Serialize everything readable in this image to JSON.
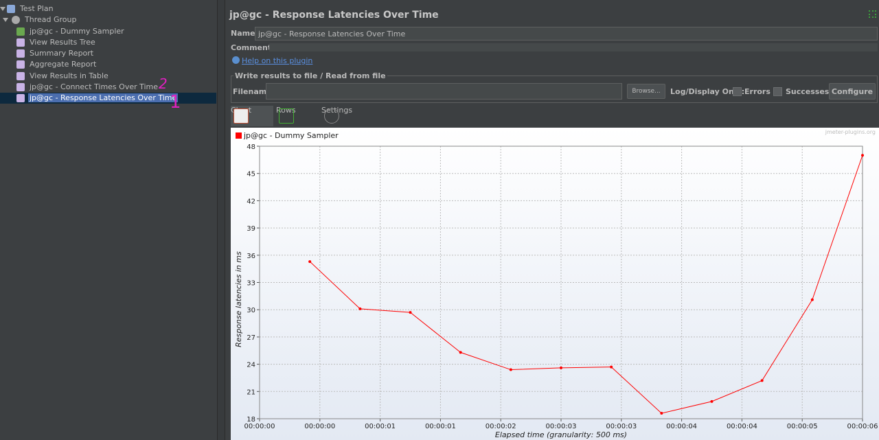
{
  "tree": {
    "items": [
      "Test Plan",
      "Thread Group",
      "jp@gc - Dummy Sampler",
      "View Results Tree",
      "Summary Report",
      "Aggregate Report",
      "View Results in Table",
      "jp@gc - Connect Times Over Time",
      "jp@gc - Response Latencies Over Time"
    ],
    "selected_item": 8,
    "annotations": [
      "2",
      "1"
    ]
  },
  "panel": {
    "title": "jp@gc - Response Latencies Over Time",
    "name_label": "Name:",
    "name_value": "jp@gc - Response Latencies Over Time",
    "comments_label": "Comments:",
    "help_link": "Help on this plugin",
    "file_group": {
      "title": "Write results to file / Read from file",
      "filename_label": "Filename",
      "browse": "Browse...",
      "log_label": "Log/Display Only:",
      "errors": "Errors",
      "successes": "Successes",
      "configure": "Configure"
    },
    "tabs": [
      "Chart",
      "Rows",
      "Settings"
    ]
  },
  "chart_data": {
    "type": "line",
    "watermark": "jmeter-plugins.org",
    "xlabel": "Elapsed time (granularity: 500 ms)",
    "ylabel": "Response latencies in ms",
    "x": [
      500,
      1000,
      1500,
      2000,
      2500,
      3000,
      3500,
      4000,
      4500,
      5000,
      5500,
      6000
    ],
    "series": [
      {
        "name": "jp@gc - Dummy Sampler",
        "color": "#ff0000",
        "values": [
          35.3,
          30.1,
          29.7,
          25.3,
          23.4,
          23.6,
          23.7,
          18.6,
          19.9,
          22.2,
          31.1,
          47.0
        ]
      }
    ],
    "xlim": [
      0,
      6000
    ],
    "xticks": [
      {
        "value": 0,
        "label": "00:00:00"
      },
      {
        "value": 600,
        "label": "00:00:00"
      },
      {
        "value": 1200,
        "label": "00:00:01"
      },
      {
        "value": 1800,
        "label": "00:00:01"
      },
      {
        "value": 2400,
        "label": "00:00:02"
      },
      {
        "value": 3000,
        "label": "00:00:03"
      },
      {
        "value": 3600,
        "label": "00:00:03"
      },
      {
        "value": 4200,
        "label": "00:00:04"
      },
      {
        "value": 4800,
        "label": "00:00:04"
      },
      {
        "value": 5400,
        "label": "00:00:05"
      },
      {
        "value": 6000,
        "label": "00:00:06"
      }
    ],
    "ylim": [
      18,
      48
    ],
    "yticks": [
      18,
      21,
      24,
      27,
      30,
      33,
      36,
      39,
      42,
      45,
      48
    ],
    "grid": true
  }
}
